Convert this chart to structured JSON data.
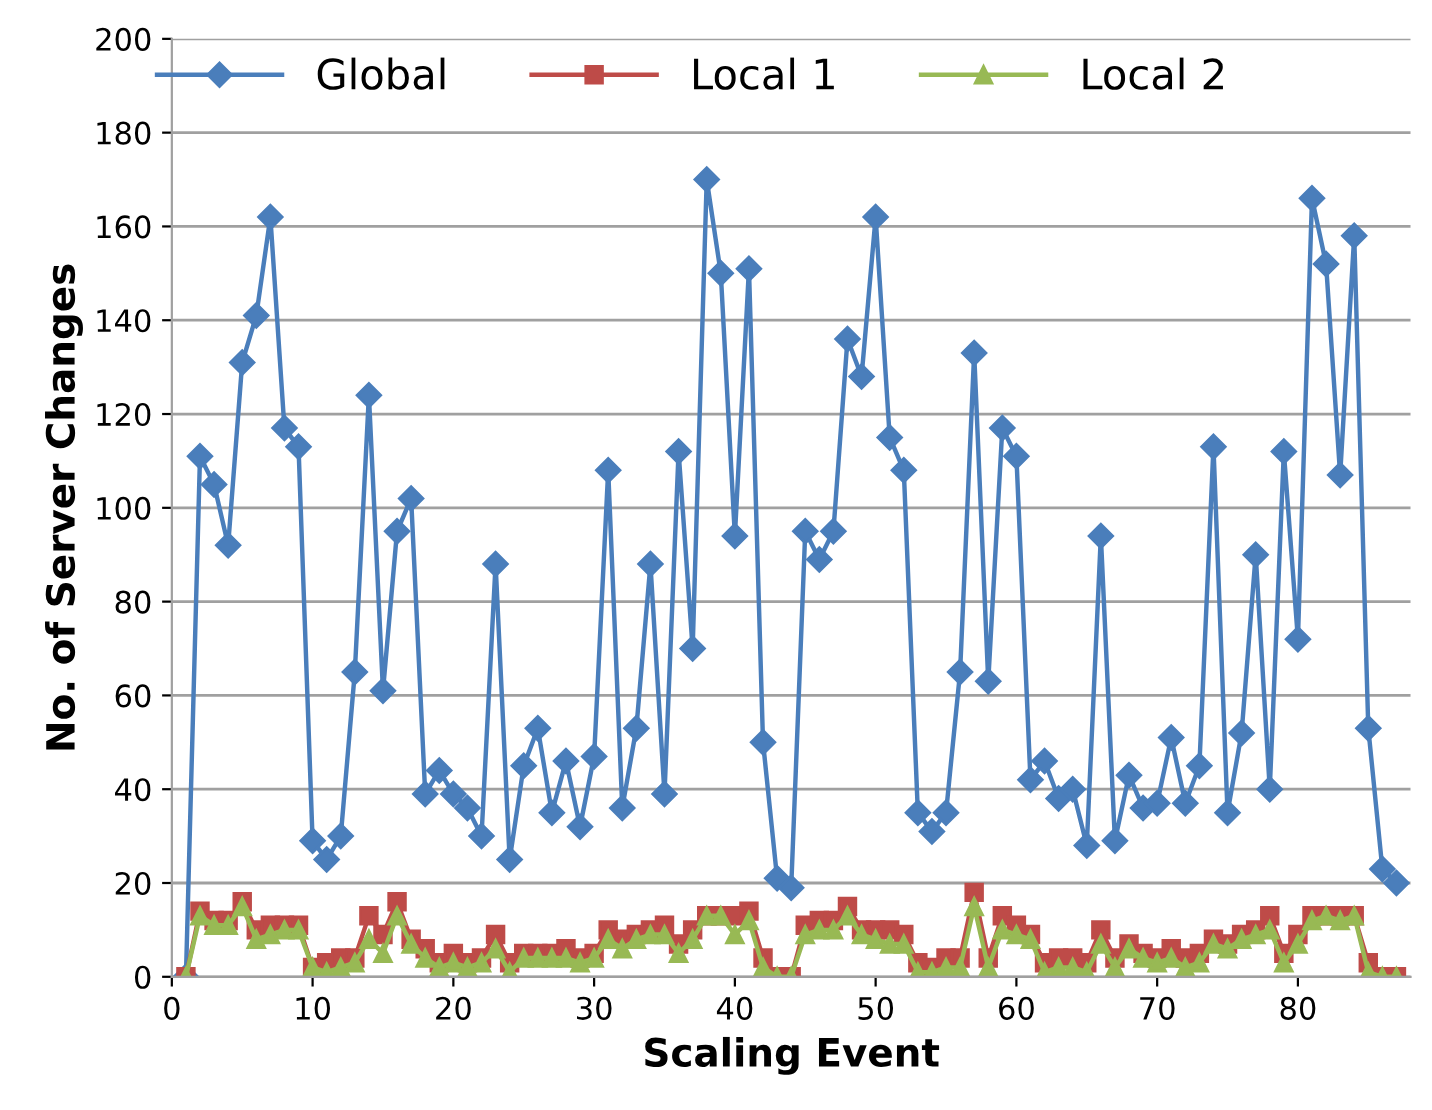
{
  "chart_data": {
    "type": "line",
    "xlabel": "Scaling Event",
    "ylabel": "No. of Server Changes",
    "x": [
      1,
      2,
      3,
      4,
      5,
      6,
      7,
      8,
      9,
      10,
      11,
      12,
      13,
      14,
      15,
      16,
      17,
      18,
      19,
      20,
      21,
      22,
      23,
      24,
      25,
      26,
      27,
      28,
      29,
      30,
      31,
      32,
      33,
      34,
      35,
      36,
      37,
      38,
      39,
      40,
      41,
      42,
      43,
      44,
      45,
      46,
      47,
      48,
      49,
      50,
      51,
      52,
      53,
      54,
      55,
      56,
      57,
      58,
      59,
      60,
      61,
      62,
      63,
      64,
      65,
      66,
      67,
      68,
      69,
      70,
      71,
      72,
      73,
      74,
      75,
      76,
      77,
      78,
      79,
      80,
      81,
      82,
      83,
      84,
      85,
      86,
      87
    ],
    "series": [
      {
        "name": "Global",
        "color": "#4a7ebb",
        "marker": "diamond",
        "values": [
          0,
          111,
          105,
          92,
          131,
          141,
          162,
          117,
          113,
          29,
          25,
          30,
          65,
          124,
          61,
          95,
          102,
          39,
          44,
          39,
          36,
          30,
          88,
          25,
          45,
          53,
          35,
          46,
          32,
          47,
          108,
          36,
          53,
          88,
          39,
          112,
          70,
          170,
          150,
          94,
          151,
          50,
          21,
          19,
          95,
          89,
          95,
          136,
          128,
          162,
          115,
          108,
          35,
          31,
          35,
          65,
          133,
          63,
          117,
          111,
          42,
          46,
          38,
          40,
          28,
          94,
          29,
          43,
          36,
          37,
          51,
          37,
          45,
          113,
          35,
          52,
          90,
          40,
          112,
          72,
          166,
          152,
          107,
          158,
          53,
          23,
          20
        ]
      },
      {
        "name": "Local 1",
        "color": "#be4b48",
        "marker": "square",
        "values": [
          0,
          14,
          12,
          12,
          16,
          10,
          11,
          11,
          11,
          2,
          3,
          4,
          4,
          13,
          9,
          16,
          8,
          6,
          3,
          5,
          3,
          4,
          9,
          3,
          5,
          5,
          5,
          6,
          4,
          5,
          10,
          8,
          9,
          10,
          11,
          7,
          10,
          13,
          13,
          13,
          14,
          4,
          0,
          0,
          11,
          12,
          12,
          15,
          10,
          10,
          10,
          9,
          3,
          2,
          4,
          4,
          18,
          4,
          13,
          11,
          9,
          3,
          4,
          4,
          3,
          10,
          4,
          7,
          5,
          4,
          6,
          4,
          5,
          8,
          7,
          9,
          10,
          13,
          5,
          9,
          13,
          13,
          13,
          13,
          3,
          0,
          0
        ]
      },
      {
        "name": "Local 2",
        "color": "#98b954",
        "marker": "triangle",
        "values": [
          0,
          13,
          11,
          11,
          15,
          8,
          9,
          10,
          10,
          2,
          1,
          2,
          3,
          8,
          5,
          13,
          7,
          4,
          2,
          3,
          2,
          3,
          6,
          1,
          4,
          4,
          4,
          4,
          3,
          4,
          8,
          6,
          8,
          9,
          9,
          5,
          8,
          13,
          13,
          9,
          12,
          2,
          0,
          0,
          9,
          10,
          10,
          13,
          9,
          8,
          7,
          7,
          1,
          1,
          2,
          2,
          15,
          2,
          10,
          9,
          8,
          1,
          2,
          2,
          1,
          7,
          2,
          6,
          4,
          3,
          4,
          2,
          3,
          7,
          6,
          8,
          9,
          10,
          3,
          7,
          12,
          13,
          12,
          13,
          1,
          0,
          0
        ]
      }
    ],
    "xlim": [
      0,
      88
    ],
    "xticks": [
      0,
      10,
      20,
      30,
      40,
      50,
      60,
      70,
      80
    ],
    "ylim": [
      0,
      200
    ],
    "yticks": [
      0,
      20,
      40,
      60,
      80,
      100,
      120,
      140,
      160,
      180,
      200
    ],
    "grid": "y",
    "legend": "top",
    "line_style": "solid"
  }
}
